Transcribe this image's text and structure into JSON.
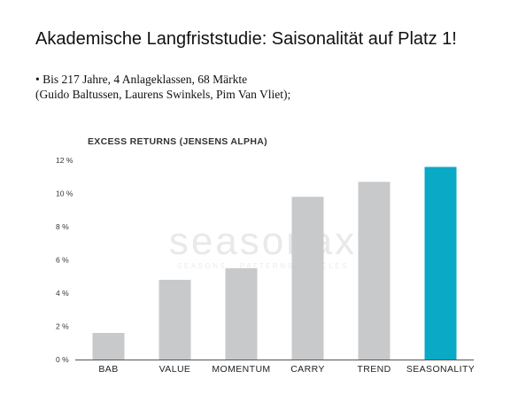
{
  "slide": {
    "title": "Akademische Langfriststudie: Saisonalität auf Platz 1!",
    "bullet_line1": "• Bis 217 Jahre, 4 Anlageklassen, 68 Märkte",
    "bullet_line2": "(Guido Baltussen, Laurens Swinkels, Pim Van Vliet);"
  },
  "watermark": {
    "brand": "seasonax",
    "tagline": "SEASONS · PATTERNS · CYCLES"
  },
  "colors": {
    "bar_default": "#c8c9cb",
    "bar_highlight": "#0aa9c5",
    "axis": "#555555"
  },
  "chart_data": {
    "type": "bar",
    "title": "EXCESS RETURNS (JENSENS ALPHA)",
    "categories": [
      "BAB",
      "VALUE",
      "MOMENTUM",
      "CARRY",
      "TREND",
      "SEASONALITY"
    ],
    "values": [
      1.6,
      4.8,
      5.5,
      9.8,
      10.7,
      11.6
    ],
    "highlight": "SEASONALITY",
    "ylim": [
      0,
      12
    ],
    "yticks": [
      0,
      2,
      4,
      6,
      8,
      10,
      12
    ],
    "ytick_labels": [
      "0 %",
      "2 %",
      "4 %",
      "6 %",
      "8 %",
      "10 %",
      "12 %"
    ],
    "grid": false,
    "legend": "none"
  }
}
